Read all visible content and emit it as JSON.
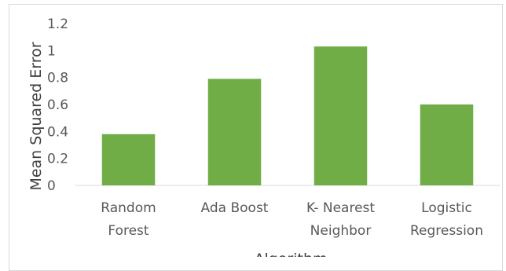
{
  "chart_data": {
    "type": "bar",
    "categories": [
      [
        "Random",
        "Forest"
      ],
      [
        "Ada Boost"
      ],
      [
        "K- Nearest",
        "Neighbor"
      ],
      [
        "Logistic",
        "Regression"
      ]
    ],
    "values": [
      0.38,
      0.79,
      1.03,
      0.6
    ],
    "title": "",
    "xlabel": "Algorithm",
    "ylabel": "Mean Squared Error",
    "ylim": [
      0,
      1.2
    ],
    "yticks": [
      "0",
      "0.2",
      "0.4",
      "0.6",
      "0.8",
      "1",
      "1.2"
    ],
    "bar_color": "#70ad47",
    "grid": false,
    "legend": "none"
  }
}
